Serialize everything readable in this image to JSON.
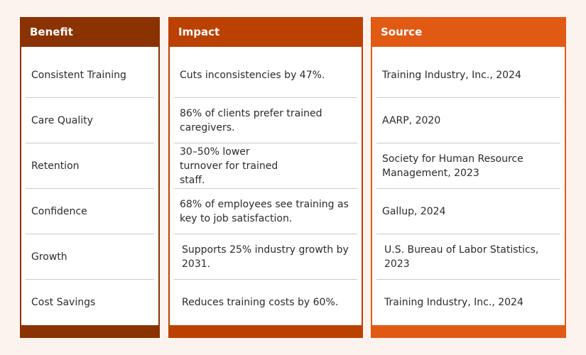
{
  "colors": {
    "benefit_column": "#8a3200",
    "impact_column": "#bb4100",
    "source_column": "#e05a14",
    "background": "#fdf3ee"
  },
  "headers": {
    "benefit": "Benefit",
    "impact": "Impact",
    "source": "Source"
  },
  "rows": [
    {
      "benefit": "Consistent Training",
      "impact": "Cuts inconsistencies by 47%.",
      "source": "Training Industry, Inc., 2024"
    },
    {
      "benefit": "Care Quality",
      "impact": "86% of clients prefer trained caregivers.",
      "source": "AARP, 2020"
    },
    {
      "benefit": "Retention",
      "impact": "30–50% lower turnover for trained staff.",
      "source": "Society for Human Resource Management, 2023"
    },
    {
      "benefit": "Confidence",
      "impact": "68% of employees see training as key to job satisfaction.",
      "source": "Gallup, 2024"
    },
    {
      "benefit": "Growth",
      "impact": "Supports 25% industry growth by 2031.",
      "source": "U.S. Bureau of Labor Statistics, 2023"
    },
    {
      "benefit": "Cost Savings",
      "impact": "Reduces training costs by 60%.",
      "source": "Training Industry, Inc., 2024"
    }
  ]
}
